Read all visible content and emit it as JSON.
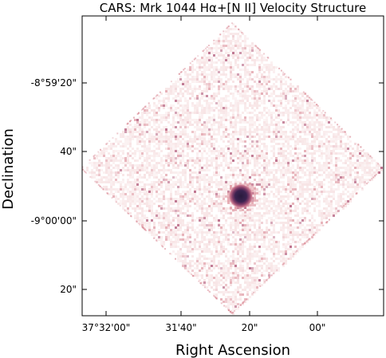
{
  "chart_data": {
    "type": "heatmap",
    "title": "CARS: Mrk 1044 Hα+[N II] Velocity Structure",
    "xlabel": "Right Ascension",
    "ylabel": "Declination",
    "x_ticks": [
      "37°32'00\"",
      "31'40\"",
      "20\"",
      "00\""
    ],
    "y_ticks": [
      "-8°59'20\"",
      "40\"",
      "-9°00'00\"",
      "20\""
    ],
    "grid": false,
    "colormap": [
      "#ffffff",
      "#f6dfe0",
      "#dc8f9a",
      "#a84569",
      "#5a2a5a",
      "#2a1a3d"
    ]
  }
}
